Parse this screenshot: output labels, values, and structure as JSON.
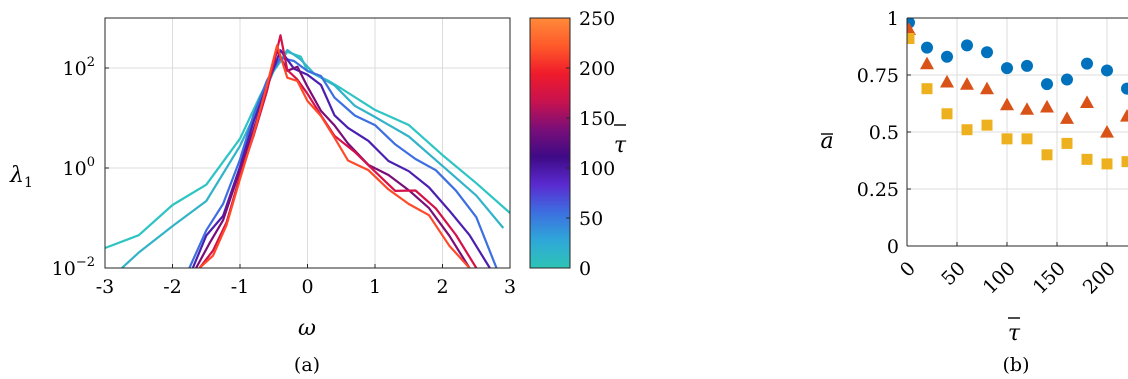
{
  "panels": {
    "a_caption": "(a)",
    "b_caption": "(b)"
  },
  "chart_data": [
    {
      "panel": "a",
      "type": "line",
      "xlabel": "ω",
      "ylabel_main": "λ",
      "ylabel_sub": "1",
      "xlim": [
        -3,
        3
      ],
      "ylim": [
        0.01,
        1000
      ],
      "yscale": "log",
      "grid": true,
      "xticks": [
        "-3",
        "-2",
        "-1",
        "0",
        "1",
        "2",
        "3"
      ],
      "xtick_values": [
        -3,
        -2,
        -1,
        0,
        1,
        2,
        3
      ],
      "yticks": [
        {
          "base": "10",
          "exp": "−2",
          "value": -2
        },
        {
          "base": "10",
          "exp": "0",
          "value": 0
        },
        {
          "base": "10",
          "exp": "2",
          "value": 2
        }
      ],
      "colorbar": {
        "label": "τ",
        "range": [
          0,
          250
        ],
        "ticks": [
          "250",
          "200",
          "150",
          "100",
          "50",
          "0"
        ],
        "tick_values": [
          250,
          200,
          150,
          100,
          50,
          0
        ],
        "colors": [
          "#2ec4b6",
          "#2ea7d8",
          "#3d6fe0",
          "#5a2ad0",
          "#3e0a86",
          "#7a0e78",
          "#c8124e",
          "#f01b2b",
          "#ff5a2a",
          "#ff8a3a"
        ]
      },
      "series": [
        {
          "color": "#2ec4c4",
          "x": [
            -3.0,
            -2.5,
            -2.0,
            -1.5,
            -1.0,
            -0.7,
            -0.5,
            -0.3,
            -0.1,
            0.0,
            0.3,
            0.5,
            1.0,
            1.5,
            2.0,
            2.5,
            3.0
          ],
          "log10y": [
            -1.6,
            -1.3,
            -0.8,
            -0.3,
            0.6,
            1.4,
            2.0,
            2.3,
            2.2,
            2.0,
            1.7,
            1.6,
            1.2,
            0.8,
            0.3,
            -0.3,
            -0.9
          ]
        },
        {
          "color": "#33b3c9",
          "x": [
            -2.75,
            -2.5,
            -2.0,
            -1.5,
            -1.0,
            -0.7,
            -0.5,
            -0.3,
            -0.1,
            0.1,
            0.4,
            0.7,
            1.0,
            1.5,
            2.0,
            2.5,
            2.9
          ],
          "log10y": [
            -2.0,
            -1.7,
            -1.2,
            -0.6,
            0.4,
            1.3,
            2.0,
            2.3,
            2.2,
            1.9,
            1.6,
            1.3,
            1.0,
            0.6,
            0.1,
            -0.6,
            -1.2
          ]
        },
        {
          "color": "#3d6fe0",
          "x": [
            -1.75,
            -1.5,
            -1.25,
            -1.0,
            -0.8,
            -0.6,
            -0.4,
            -0.2,
            0.0,
            0.2,
            0.4,
            0.7,
            1.0,
            1.3,
            1.6,
            1.9,
            2.2,
            2.5,
            2.8
          ],
          "log10y": [
            -2.0,
            -1.3,
            -0.7,
            0.2,
            1.0,
            1.8,
            2.2,
            2.1,
            2.0,
            1.8,
            1.4,
            1.1,
            0.8,
            0.5,
            0.2,
            -0.1,
            -0.4,
            -1.0,
            -2.0
          ]
        },
        {
          "color": "#4a1fb0",
          "x": [
            -1.7,
            -1.5,
            -1.25,
            -1.0,
            -0.8,
            -0.6,
            -0.4,
            -0.2,
            0.0,
            0.2,
            0.4,
            0.6,
            0.9,
            1.2,
            1.5,
            1.8,
            2.1,
            2.4,
            2.7
          ],
          "log10y": [
            -2.0,
            -1.4,
            -0.9,
            0.0,
            0.9,
            1.7,
            2.3,
            2.0,
            1.9,
            1.6,
            1.1,
            0.8,
            0.5,
            0.2,
            -0.1,
            -0.4,
            -0.8,
            -1.4,
            -2.0
          ]
        },
        {
          "color": "#7a0e78",
          "x": [
            -1.65,
            -1.45,
            -1.25,
            -1.0,
            -0.8,
            -0.6,
            -0.45,
            -0.3,
            -0.15,
            0.0,
            0.2,
            0.4,
            0.6,
            0.9,
            1.2,
            1.5,
            1.8,
            2.1,
            2.4
          ],
          "log10y": [
            -2.0,
            -1.5,
            -1.0,
            -0.1,
            0.8,
            1.6,
            2.3,
            2.0,
            2.0,
            1.6,
            1.2,
            0.8,
            0.5,
            0.1,
            -0.2,
            -0.4,
            -0.8,
            -1.4,
            -2.0
          ]
        },
        {
          "color": "#d4124a",
          "x": [
            -1.6,
            -1.4,
            -1.2,
            -1.0,
            -0.8,
            -0.6,
            -0.5,
            -0.4,
            -0.3,
            -0.15,
            0.0,
            0.2,
            0.4,
            0.7,
            1.0,
            1.3,
            1.6,
            1.9,
            2.2,
            2.5
          ],
          "log10y": [
            -2.0,
            -1.6,
            -1.1,
            -0.2,
            0.7,
            1.5,
            2.1,
            2.7,
            1.9,
            1.8,
            1.5,
            1.0,
            0.7,
            0.3,
            -0.1,
            -0.4,
            -0.5,
            -0.8,
            -1.3,
            -2.0
          ]
        },
        {
          "color": "#ff4a2a",
          "x": [
            -1.6,
            -1.4,
            -1.2,
            -1.0,
            -0.8,
            -0.6,
            -0.45,
            -0.3,
            -0.15,
            0.0,
            0.2,
            0.4,
            0.6,
            0.9,
            1.2,
            1.5,
            1.8,
            2.1,
            2.4
          ],
          "log10y": [
            -2.0,
            -1.7,
            -1.2,
            -0.2,
            0.7,
            1.6,
            2.5,
            1.8,
            1.7,
            1.4,
            1.0,
            0.6,
            0.2,
            -0.1,
            -0.4,
            -0.7,
            -1.0,
            -1.5,
            -2.0
          ]
        }
      ]
    },
    {
      "panel": "b",
      "type": "scatter",
      "xlabel": "τ",
      "ylabel": "a",
      "xlim": [
        0,
        230
      ],
      "ylim": [
        0,
        1
      ],
      "grid": true,
      "xticks": [
        "0",
        "50",
        "100",
        "150",
        "200"
      ],
      "xtick_values": [
        0,
        50,
        100,
        150,
        200
      ],
      "yticks": [
        "0",
        "0.25",
        "0.5",
        "0.75",
        "1"
      ],
      "ytick_values": [
        0,
        0.25,
        0.5,
        0.75,
        1
      ],
      "series": [
        {
          "marker": "circle",
          "color": "#0072bd",
          "x": [
            2,
            20,
            40,
            60,
            80,
            100,
            120,
            140,
            160,
            180,
            200,
            220
          ],
          "y": [
            0.98,
            0.87,
            0.83,
            0.88,
            0.85,
            0.78,
            0.79,
            0.71,
            0.73,
            0.8,
            0.77,
            0.69
          ]
        },
        {
          "marker": "triangle",
          "color": "#d95319",
          "x": [
            2,
            20,
            40,
            60,
            80,
            100,
            120,
            140,
            160,
            180,
            200,
            220
          ],
          "y": [
            0.95,
            0.8,
            0.72,
            0.71,
            0.69,
            0.62,
            0.6,
            0.61,
            0.56,
            0.63,
            0.5,
            0.57
          ]
        },
        {
          "marker": "square",
          "color": "#edb120",
          "x": [
            2,
            20,
            40,
            60,
            80,
            100,
            120,
            140,
            160,
            180,
            200,
            220
          ],
          "y": [
            0.91,
            0.69,
            0.58,
            0.51,
            0.53,
            0.47,
            0.47,
            0.4,
            0.45,
            0.38,
            0.36,
            0.37
          ]
        }
      ]
    }
  ]
}
